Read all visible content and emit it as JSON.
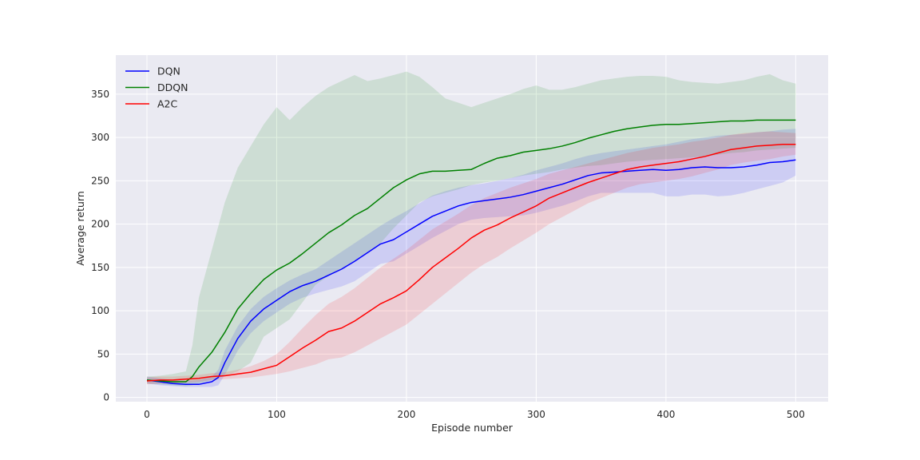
{
  "chart_data": {
    "type": "line",
    "xlabel": "Episode number",
    "ylabel": "Average return",
    "xlim": [
      -24,
      525
    ],
    "ylim": [
      -5,
      395
    ],
    "xticks": [
      0,
      100,
      200,
      300,
      400,
      500
    ],
    "yticks": [
      0,
      50,
      100,
      150,
      200,
      250,
      300,
      350
    ],
    "grid": true,
    "legend": "top-left",
    "background": "#eaeaf2",
    "series": [
      {
        "name": "DQN",
        "color": "#0000ff",
        "x": [
          0,
          10,
          20,
          30,
          40,
          50,
          55,
          60,
          70,
          80,
          90,
          100,
          110,
          120,
          130,
          140,
          150,
          160,
          170,
          180,
          190,
          200,
          210,
          220,
          230,
          240,
          250,
          260,
          270,
          280,
          290,
          300,
          310,
          320,
          330,
          340,
          350,
          360,
          370,
          380,
          390,
          400,
          410,
          420,
          430,
          440,
          450,
          460,
          470,
          480,
          490,
          500
        ],
        "y": [
          20,
          18,
          16,
          15,
          15,
          18,
          23,
          40,
          68,
          88,
          102,
          112,
          122,
          129,
          134,
          141,
          148,
          157,
          167,
          177,
          182,
          191,
          200,
          209,
          215,
          221,
          225,
          227,
          229,
          231,
          234,
          238,
          242,
          246,
          251,
          256,
          259,
          260,
          261,
          262,
          263,
          262,
          263,
          265,
          266,
          265,
          265,
          266,
          268,
          271,
          272,
          274
        ],
        "upper": [
          24,
          22,
          20,
          19,
          20,
          24,
          32,
          54,
          82,
          102,
          116,
          126,
          135,
          142,
          148,
          158,
          168,
          178,
          188,
          198,
          207,
          215,
          224,
          233,
          238,
          242,
          245,
          247,
          250,
          253,
          257,
          262,
          266,
          270,
          275,
          279,
          282,
          284,
          286,
          288,
          290,
          292,
          295,
          298,
          300,
          302,
          303,
          304,
          306,
          307,
          309,
          310
        ],
        "lower": [
          16,
          14,
          13,
          12,
          12,
          12,
          14,
          26,
          54,
          74,
          88,
          98,
          108,
          115,
          120,
          124,
          128,
          134,
          144,
          154,
          157,
          166,
          175,
          184,
          192,
          200,
          205,
          207,
          208,
          209,
          210,
          213,
          217,
          221,
          226,
          232,
          236,
          236,
          236,
          236,
          236,
          232,
          232,
          234,
          234,
          232,
          233,
          236,
          240,
          244,
          248,
          256
        ]
      },
      {
        "name": "DDQN",
        "color": "#008000",
        "x": [
          0,
          10,
          20,
          30,
          35,
          40,
          50,
          60,
          70,
          80,
          90,
          100,
          110,
          120,
          130,
          140,
          150,
          160,
          170,
          180,
          190,
          200,
          210,
          220,
          230,
          240,
          250,
          260,
          270,
          280,
          290,
          300,
          310,
          320,
          330,
          340,
          350,
          360,
          370,
          380,
          390,
          400,
          410,
          420,
          430,
          440,
          450,
          460,
          470,
          480,
          490,
          500
        ],
        "y": [
          20,
          19,
          18,
          18,
          24,
          35,
          52,
          75,
          102,
          120,
          136,
          147,
          155,
          166,
          178,
          190,
          199,
          210,
          218,
          230,
          242,
          251,
          258,
          261,
          261,
          262,
          263,
          270,
          276,
          279,
          283,
          285,
          287,
          290,
          294,
          299,
          303,
          307,
          310,
          312,
          314,
          315,
          315,
          316,
          317,
          318,
          319,
          319,
          320,
          320,
          320,
          320
        ],
        "upper": [
          24,
          25,
          27,
          30,
          60,
          115,
          170,
          225,
          265,
          290,
          315,
          335,
          320,
          335,
          348,
          358,
          365,
          372,
          365,
          368,
          372,
          376,
          370,
          358,
          345,
          340,
          335,
          340,
          345,
          350,
          356,
          360,
          355,
          355,
          358,
          362,
          366,
          368,
          370,
          371,
          371,
          370,
          366,
          364,
          363,
          362,
          364,
          366,
          370,
          373,
          366,
          362
        ],
        "lower": [
          16,
          15,
          14,
          13,
          14,
          16,
          20,
          25,
          30,
          40,
          70,
          80,
          90,
          110,
          130,
          140,
          148,
          158,
          168,
          178,
          195,
          210,
          225,
          232,
          236,
          240,
          245,
          248,
          250,
          253,
          256,
          258,
          260,
          263,
          265,
          267,
          268,
          270,
          272,
          273,
          274,
          275,
          276,
          277,
          278,
          280,
          282,
          283,
          285,
          286,
          287,
          288
        ]
      },
      {
        "name": "A2C",
        "color": "#ff0000",
        "x": [
          0,
          10,
          20,
          30,
          40,
          50,
          60,
          70,
          80,
          90,
          100,
          110,
          120,
          130,
          140,
          150,
          160,
          170,
          180,
          190,
          200,
          210,
          220,
          230,
          240,
          250,
          260,
          270,
          280,
          290,
          300,
          310,
          320,
          330,
          340,
          350,
          360,
          370,
          380,
          390,
          400,
          410,
          420,
          430,
          440,
          450,
          460,
          470,
          480,
          490,
          500
        ],
        "y": [
          19,
          20,
          20,
          21,
          22,
          24,
          25,
          27,
          29,
          33,
          37,
          47,
          57,
          66,
          76,
          80,
          88,
          98,
          108,
          115,
          123,
          136,
          150,
          161,
          172,
          184,
          193,
          199,
          207,
          214,
          221,
          230,
          236,
          242,
          248,
          253,
          258,
          263,
          266,
          268,
          270,
          272,
          275,
          278,
          282,
          286,
          288,
          290,
          291,
          292,
          292
        ],
        "upper": [
          23,
          24,
          24,
          25,
          26,
          28,
          29,
          32,
          36,
          42,
          50,
          64,
          80,
          95,
          108,
          116,
          126,
          138,
          150,
          160,
          170,
          182,
          194,
          203,
          212,
          222,
          230,
          236,
          242,
          247,
          252,
          258,
          262,
          266,
          270,
          274,
          278,
          282,
          285,
          288,
          290,
          292,
          295,
          297,
          300,
          303,
          305,
          306,
          307,
          306,
          305
        ],
        "lower": [
          15,
          16,
          16,
          17,
          18,
          20,
          21,
          22,
          23,
          25,
          27,
          30,
          34,
          38,
          44,
          46,
          52,
          60,
          68,
          76,
          84,
          96,
          108,
          120,
          132,
          144,
          154,
          162,
          172,
          181,
          190,
          200,
          208,
          216,
          224,
          230,
          236,
          242,
          246,
          248,
          250,
          252,
          255,
          259,
          263,
          268,
          271,
          273,
          275,
          278,
          280
        ]
      }
    ]
  }
}
